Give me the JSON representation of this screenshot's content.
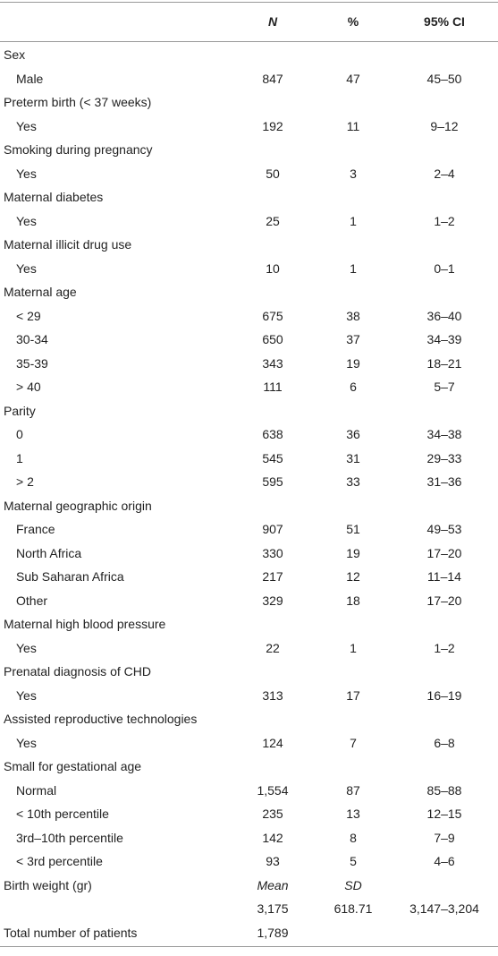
{
  "header": {
    "n": "N",
    "pct": "%",
    "ci": "95% CI"
  },
  "sections": [
    {
      "title": "Sex",
      "rows": [
        {
          "label": "Male",
          "n": "847",
          "pct": "47",
          "ci": "45–50"
        }
      ]
    },
    {
      "title": "Preterm birth (< 37 weeks)",
      "rows": [
        {
          "label": "Yes",
          "n": "192",
          "pct": "11",
          "ci": "9–12"
        }
      ]
    },
    {
      "title": "Smoking during pregnancy",
      "rows": [
        {
          "label": "Yes",
          "n": "50",
          "pct": "3",
          "ci": "2–4"
        }
      ]
    },
    {
      "title": "Maternal diabetes",
      "rows": [
        {
          "label": "Yes",
          "n": "25",
          "pct": "1",
          "ci": "1–2"
        }
      ]
    },
    {
      "title": "Maternal illicit drug use",
      "rows": [
        {
          "label": "Yes",
          "n": "10",
          "pct": "1",
          "ci": "0–1"
        }
      ]
    },
    {
      "title": "Maternal age",
      "rows": [
        {
          "label": "< 29",
          "n": "675",
          "pct": "38",
          "ci": "36–40"
        },
        {
          "label": "30-34",
          "n": "650",
          "pct": "37",
          "ci": "34–39"
        },
        {
          "label": "35-39",
          "n": "343",
          "pct": "19",
          "ci": "18–21"
        },
        {
          "label": "> 40",
          "n": "111",
          "pct": "6",
          "ci": "5–7"
        }
      ]
    },
    {
      "title": "Parity",
      "rows": [
        {
          "label": "0",
          "n": "638",
          "pct": "36",
          "ci": "34–38"
        },
        {
          "label": "1",
          "n": "545",
          "pct": "31",
          "ci": "29–33"
        },
        {
          "label": "> 2",
          "n": "595",
          "pct": "33",
          "ci": "31–36"
        }
      ]
    },
    {
      "title": "Maternal geographic origin",
      "rows": [
        {
          "label": "France",
          "n": "907",
          "pct": "51",
          "ci": "49–53"
        },
        {
          "label": "North Africa",
          "n": "330",
          "pct": "19",
          "ci": "17–20"
        },
        {
          "label": "Sub Saharan Africa",
          "n": "217",
          "pct": "12",
          "ci": "11–14"
        },
        {
          "label": "Other",
          "n": "329",
          "pct": "18",
          "ci": "17–20"
        }
      ]
    },
    {
      "title": "Maternal high blood pressure",
      "rows": [
        {
          "label": "Yes",
          "n": "22",
          "pct": "1",
          "ci": "1–2"
        }
      ]
    },
    {
      "title": "Prenatal diagnosis of CHD",
      "rows": [
        {
          "label": "Yes",
          "n": "313",
          "pct": "17",
          "ci": "16–19"
        }
      ]
    },
    {
      "title": "Assisted reproductive technologies",
      "rows": [
        {
          "label": "Yes",
          "n": "124",
          "pct": "7",
          "ci": "6–8"
        }
      ]
    },
    {
      "title": "Small for gestational age",
      "rows": [
        {
          "label": "Normal",
          "n": "1,554",
          "pct": "87",
          "ci": "85–88"
        },
        {
          "label": "< 10th percentile",
          "n": "235",
          "pct": "13",
          "ci": "12–15"
        },
        {
          "label": "3rd–10th percentile",
          "n": "142",
          "pct": "8",
          "ci": "7–9"
        },
        {
          "label": "< 3rd percentile",
          "n": "93",
          "pct": "5",
          "ci": "4–6"
        }
      ]
    },
    {
      "title": "Birth weight (gr)",
      "n": "Mean",
      "pct": "SD",
      "rows": [
        {
          "n": "3,175",
          "pct": "618.71",
          "ci": "3,147–3,204"
        }
      ]
    },
    {
      "title": "Total number of patients",
      "n": "1,789"
    }
  ]
}
